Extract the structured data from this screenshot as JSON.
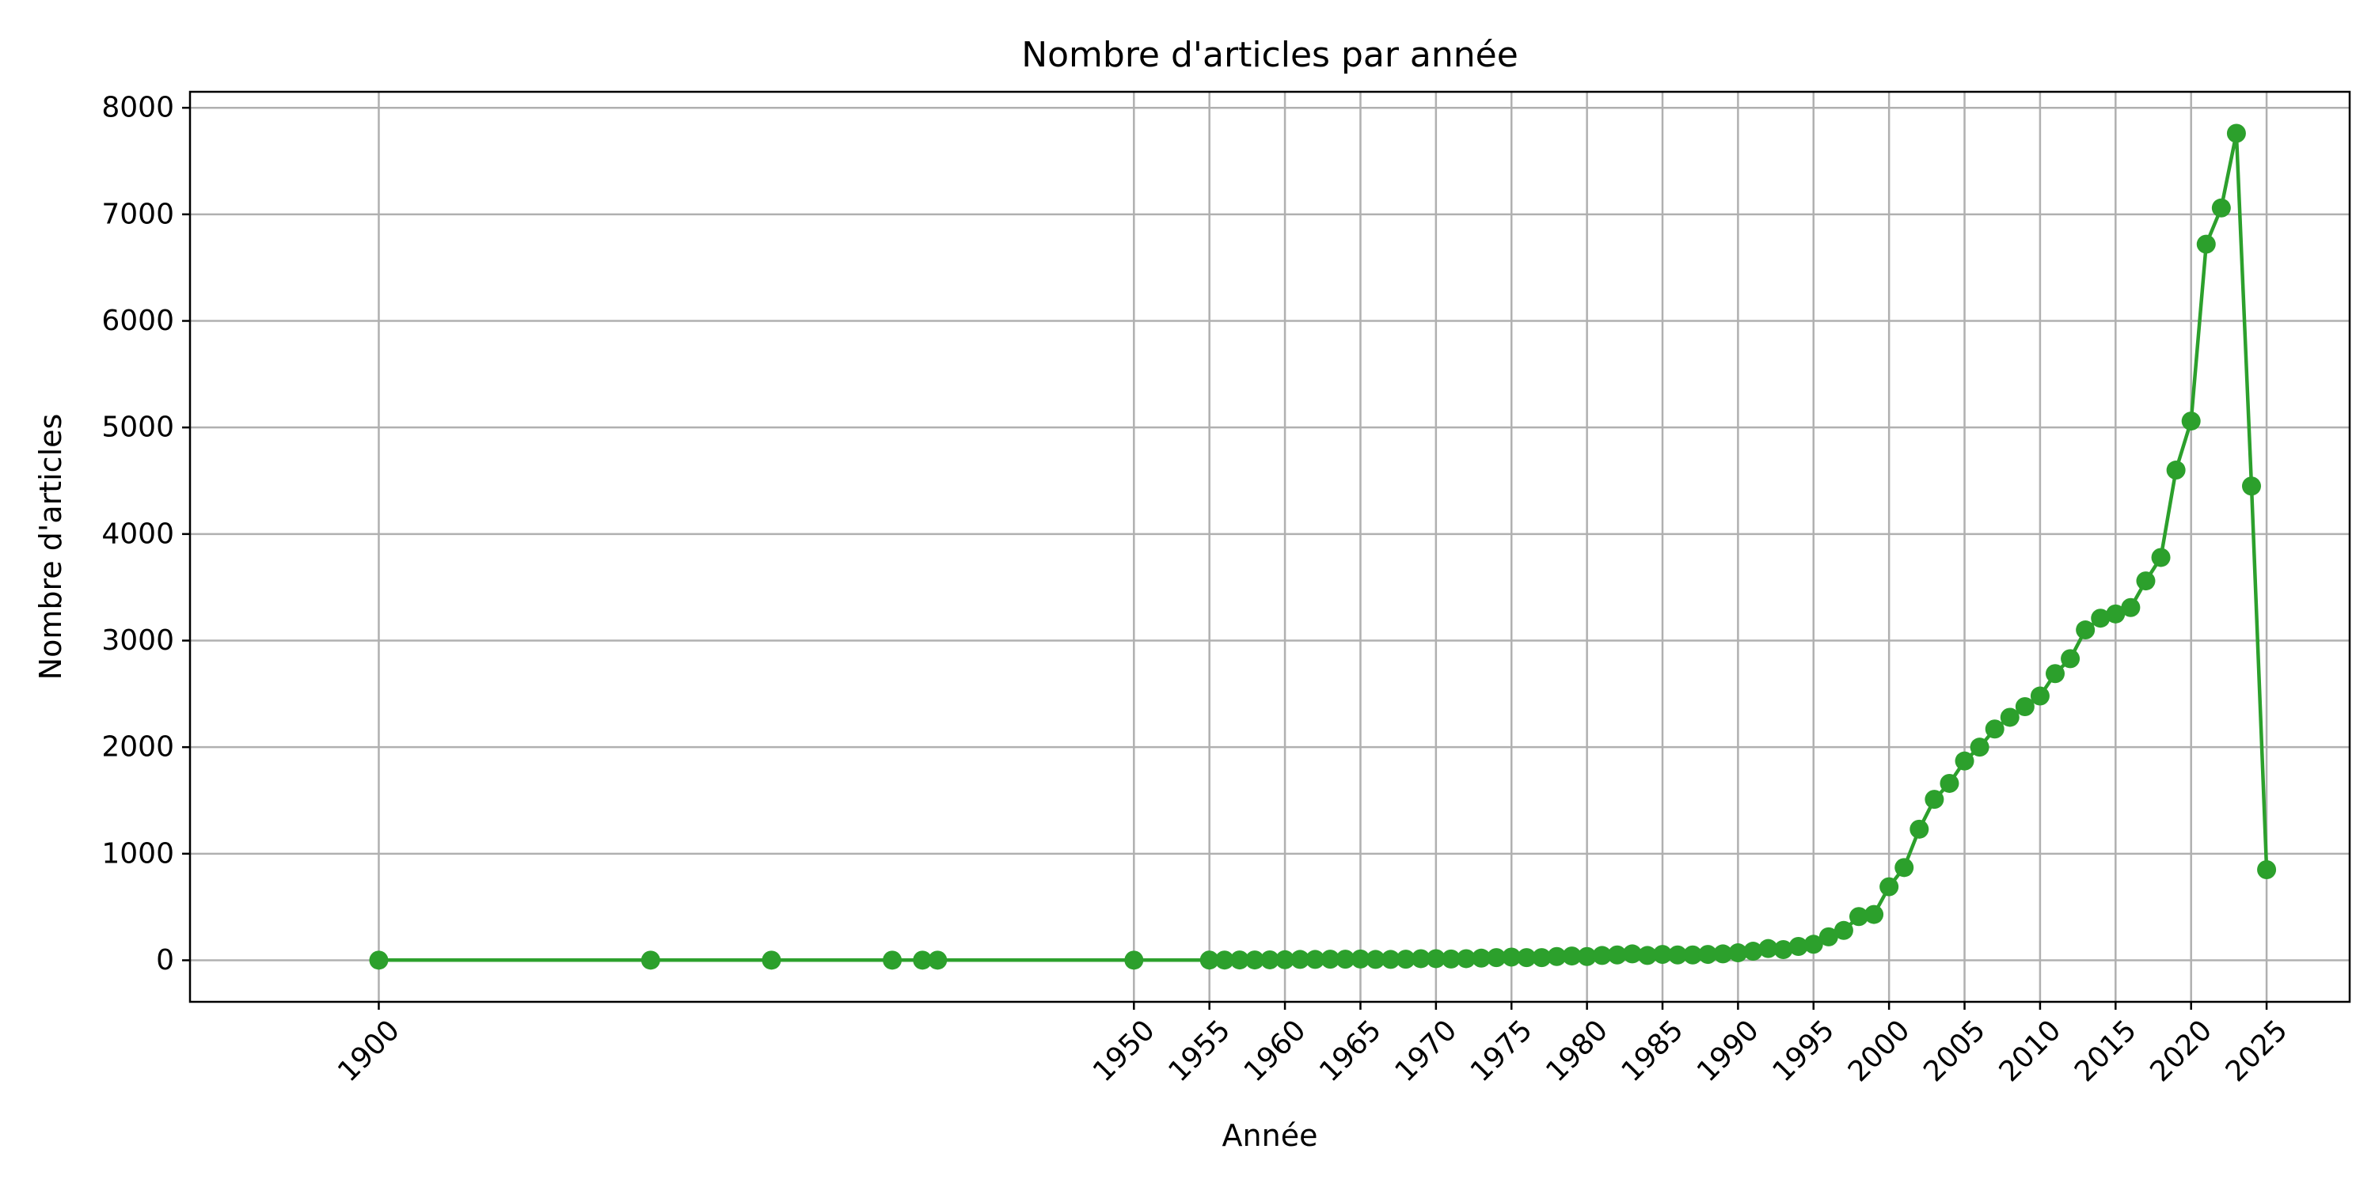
{
  "chart_data": {
    "type": "line",
    "title": "Nombre d'articles par année",
    "xlabel": "Année",
    "ylabel": "Nombre d'articles",
    "xlim": [
      1887.5,
      2030.5
    ],
    "ylim": [
      -390,
      8150
    ],
    "grid": true,
    "legend": "none",
    "color": "#2ca02c",
    "x_ticks": [
      1900,
      1950,
      1955,
      1960,
      1965,
      1970,
      1975,
      1980,
      1985,
      1990,
      1995,
      2000,
      2005,
      2010,
      2015,
      2020,
      2025
    ],
    "y_ticks": [
      0,
      1000,
      2000,
      3000,
      4000,
      5000,
      6000,
      7000,
      8000
    ],
    "series": [
      {
        "x": [
          1900,
          1918,
          1926,
          1934,
          1936,
          1937,
          1950,
          1955,
          1956,
          1957,
          1958,
          1959,
          1960,
          1961,
          1962,
          1963,
          1964,
          1965,
          1966,
          1967,
          1968,
          1969,
          1970,
          1971,
          1972,
          1973,
          1974,
          1975,
          1976,
          1977,
          1978,
          1979,
          1980,
          1981,
          1982,
          1983,
          1984,
          1985,
          1986,
          1987,
          1988,
          1989,
          1990,
          1991,
          1992,
          1993,
          1994,
          1995,
          1996,
          1997,
          1998,
          1999,
          2000,
          2001,
          2002,
          2003,
          2004,
          2005,
          2006,
          2007,
          2008,
          2009,
          2010,
          2011,
          2012,
          2013,
          2014,
          2015,
          2016,
          2017,
          2018,
          2019,
          2020,
          2021,
          2022,
          2023,
          2024,
          2025
        ],
        "y": [
          1,
          1,
          1,
          1,
          1,
          1,
          1,
          2,
          2,
          3,
          3,
          4,
          5,
          8,
          8,
          10,
          10,
          12,
          8,
          8,
          10,
          15,
          15,
          12,
          15,
          20,
          25,
          30,
          25,
          25,
          35,
          40,
          35,
          45,
          50,
          60,
          45,
          55,
          50,
          50,
          55,
          60,
          70,
          85,
          110,
          100,
          130,
          150,
          220,
          280,
          410,
          430,
          690,
          870,
          1230,
          1510,
          1660,
          1870,
          2000,
          2170,
          2280,
          2380,
          2480,
          2690,
          2830,
          3100,
          3210,
          3250,
          3310,
          3560,
          3780,
          4600,
          5060,
          6720,
          7060,
          7760,
          4450,
          850
        ]
      }
    ]
  }
}
